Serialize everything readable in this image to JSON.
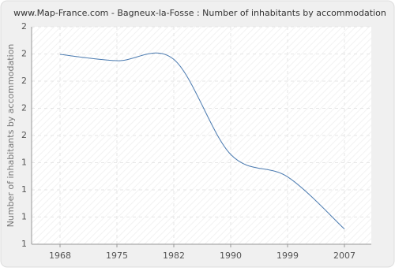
{
  "chart_data": {
    "type": "line",
    "title": "www.Map-France.com - Bagneux-la-Fosse : Number of inhabitants by accommodation",
    "y_label": "Number of inhabitants by accommodation",
    "categories": [
      "1968",
      "1975",
      "1982",
      "1990",
      "1999",
      "2007"
    ],
    "series": [
      {
        "name": "Number of inhabitants by accommodation",
        "color": "#4a7ab0",
        "values": [
          1.873,
          1.844,
          1.85,
          1.413,
          1.31,
          1.07
        ]
      }
    ],
    "ylim": [
      1,
      2
    ],
    "yticks": [
      1,
      {
        "value": 1.125,
        "label": "1"
      },
      {
        "value": 1.25,
        "label": "1"
      },
      {
        "value": 1.375,
        "label": "1"
      },
      {
        "value": 1.5,
        "label": "2"
      },
      {
        "value": 1.625,
        "label": "2"
      },
      {
        "value": 1.75,
        "label": "2"
      },
      {
        "value": 1.875,
        "label": "2"
      },
      2
    ],
    "grid": true
  }
}
